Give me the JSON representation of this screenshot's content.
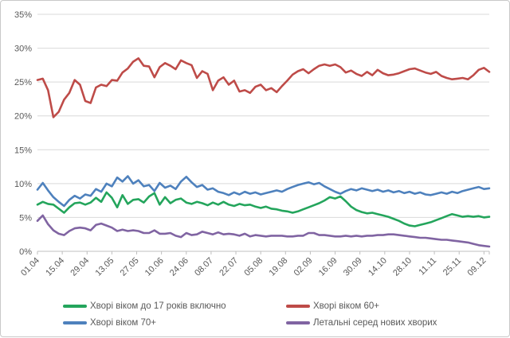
{
  "chart_data": {
    "type": "line",
    "title": "",
    "xlabel": "",
    "ylabel": "",
    "grid": true,
    "legend_position": "bottom",
    "ylim": [
      0,
      35
    ],
    "y_tick_step": 5,
    "y_tick_labels": [
      "35%",
      "30%",
      "25%",
      "20%",
      "15%",
      "10%",
      "5%",
      "0%"
    ],
    "x_labels": [
      "01.04",
      "15.04",
      "29.04",
      "13.05",
      "27.05",
      "10.06",
      "24.06",
      "08.07",
      "22.07",
      "05.08",
      "19.08",
      "02.09",
      "16.09",
      "30.09",
      "14.10",
      "28.10",
      "11.11",
      "25.11",
      "09.12"
    ],
    "x_label_interval_days": 14,
    "x_span_days": 255,
    "sample_interval_days": 3,
    "unit": "%",
    "series": [
      {
        "name": "Хворі віком до 17 років включно",
        "color": "#24A55C",
        "values": [
          6.9,
          7.3,
          7.0,
          6.9,
          6.3,
          5.7,
          6.5,
          7.1,
          7.2,
          6.9,
          7.2,
          7.9,
          7.3,
          8.7,
          7.9,
          6.5,
          8.3,
          7.0,
          7.6,
          7.7,
          7.2,
          8.1,
          8.6,
          6.9,
          8.0,
          7.1,
          7.6,
          7.8,
          7.2,
          7.0,
          7.3,
          7.1,
          6.8,
          7.2,
          6.9,
          7.3,
          6.9,
          6.7,
          7.0,
          6.8,
          6.9,
          6.6,
          6.4,
          6.6,
          6.3,
          6.2,
          6.0,
          5.9,
          5.7,
          5.9,
          6.2,
          6.5,
          6.8,
          7.1,
          7.5,
          8.0,
          7.8,
          8.1,
          7.4,
          6.6,
          6.1,
          5.8,
          5.6,
          5.7,
          5.5,
          5.3,
          5.1,
          4.8,
          4.5,
          4.1,
          3.8,
          3.7,
          3.9,
          4.1,
          4.3,
          4.6,
          4.9,
          5.2,
          5.5,
          5.3,
          5.1,
          5.2,
          5.1,
          5.2,
          5.0,
          5.1
        ]
      },
      {
        "name": "Хворі віком 60+",
        "color": "#BE4B48",
        "values": [
          25.3,
          25.5,
          23.8,
          19.8,
          20.6,
          22.4,
          23.4,
          25.3,
          24.6,
          22.2,
          21.9,
          24.2,
          24.6,
          24.4,
          25.3,
          25.2,
          26.4,
          27.0,
          28.0,
          28.5,
          27.4,
          27.3,
          25.7,
          27.2,
          27.8,
          27.4,
          26.9,
          28.2,
          27.8,
          27.5,
          25.6,
          26.6,
          26.2,
          23.8,
          25.2,
          25.7,
          24.6,
          25.2,
          23.6,
          23.8,
          23.4,
          24.3,
          24.6,
          23.8,
          24.1,
          23.5,
          24.4,
          25.2,
          26.1,
          26.6,
          26.9,
          26.3,
          26.9,
          27.4,
          27.6,
          27.4,
          27.6,
          27.2,
          26.4,
          26.7,
          26.2,
          25.9,
          26.5,
          26.0,
          26.8,
          26.3,
          26.0,
          26.1,
          26.3,
          26.6,
          26.9,
          27.0,
          26.7,
          26.4,
          26.2,
          26.5,
          25.9,
          25.6,
          25.4,
          25.5,
          25.6,
          25.4,
          26.0,
          26.8,
          27.1,
          26.5
        ]
      },
      {
        "name": "Хворі віком 70+",
        "color": "#4E81BD",
        "values": [
          9.1,
          10.1,
          9.0,
          8.0,
          7.3,
          6.7,
          7.6,
          8.2,
          7.8,
          8.4,
          8.2,
          9.2,
          8.8,
          10.0,
          9.6,
          10.9,
          10.3,
          11.1,
          10.0,
          10.5,
          9.6,
          9.8,
          8.9,
          10.1,
          9.4,
          9.7,
          9.2,
          10.3,
          11.0,
          10.2,
          9.5,
          9.8,
          9.1,
          9.3,
          8.8,
          8.6,
          8.3,
          8.7,
          8.4,
          8.8,
          8.5,
          8.7,
          8.4,
          8.6,
          8.8,
          9.0,
          8.8,
          9.2,
          9.5,
          9.8,
          10.0,
          10.2,
          9.9,
          10.1,
          9.6,
          9.2,
          8.8,
          8.5,
          8.9,
          9.2,
          9.0,
          9.3,
          9.1,
          8.9,
          9.1,
          8.8,
          9.0,
          8.7,
          8.9,
          8.6,
          8.8,
          8.5,
          8.7,
          8.4,
          8.3,
          8.5,
          8.7,
          8.5,
          8.8,
          8.6,
          8.9,
          9.1,
          9.3,
          9.5,
          9.2,
          9.3
        ]
      },
      {
        "name": "Летальні серед нових хворих",
        "color": "#8064A2",
        "values": [
          4.5,
          5.3,
          4.0,
          3.1,
          2.6,
          2.4,
          3.0,
          3.4,
          3.5,
          3.4,
          3.1,
          3.9,
          4.1,
          3.8,
          3.5,
          3.0,
          3.2,
          3.0,
          3.1,
          3.0,
          2.7,
          2.7,
          3.1,
          2.6,
          2.6,
          2.7,
          2.3,
          2.1,
          2.7,
          2.4,
          2.5,
          2.9,
          2.7,
          2.5,
          2.8,
          2.5,
          2.6,
          2.5,
          2.3,
          2.6,
          2.2,
          2.4,
          2.3,
          2.2,
          2.3,
          2.3,
          2.3,
          2.2,
          2.2,
          2.3,
          2.3,
          2.7,
          2.7,
          2.4,
          2.4,
          2.3,
          2.2,
          2.2,
          2.3,
          2.2,
          2.3,
          2.2,
          2.3,
          2.3,
          2.4,
          2.4,
          2.5,
          2.5,
          2.4,
          2.3,
          2.2,
          2.1,
          2.0,
          2.0,
          1.9,
          1.8,
          1.7,
          1.7,
          1.6,
          1.5,
          1.4,
          1.3,
          1.1,
          0.9,
          0.8,
          0.7
        ]
      }
    ],
    "colors": {
      "gridline": "#D9D9D9",
      "axis": "#BFBFBF",
      "tick_text": "#595959",
      "frame_border": "#C9C9C9"
    }
  }
}
